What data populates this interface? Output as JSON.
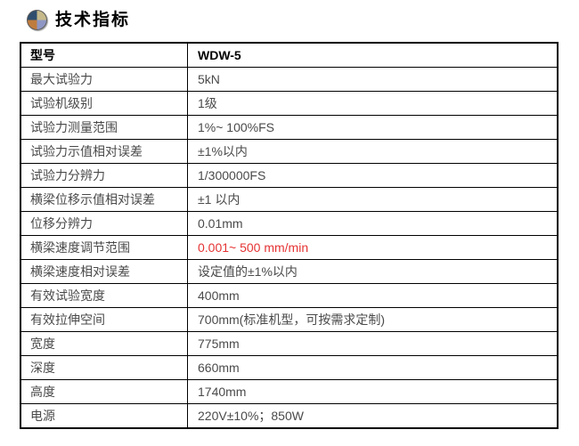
{
  "header": {
    "icon": "pie-quadrant-icon",
    "title": "技术指标"
  },
  "colors": {
    "border": "#000000",
    "text_regular": "#4a4a4a",
    "text_bold": "#000000",
    "accent_red": "#e53333",
    "icon_quadrants": {
      "top_left": "#2f4e6e",
      "top_right": "#c6ba8b",
      "bottom_left": "#bf7c3d",
      "bottom_right": "#8e96c4"
    }
  },
  "table": {
    "rows": [
      {
        "label": "型号",
        "value": "WDW-5"
      },
      {
        "label": "最大试验力",
        "value": "5kN"
      },
      {
        "label": "试验机级别",
        "value": "1级"
      },
      {
        "label": "试验力测量范围",
        "value": "1%~ 100%FS"
      },
      {
        "label": "试验力示值相对误差",
        "value": "±1%以内"
      },
      {
        "label": "试验力分辨力",
        "value": "1/300000FS"
      },
      {
        "label": "横梁位移示值相对误差",
        "value": "±1 以内"
      },
      {
        "label": "位移分辨力",
        "value": "0.01mm"
      },
      {
        "label": "横梁速度调节范围",
        "value": "0.001~ 500 mm/min"
      },
      {
        "label": "横梁速度相对误差",
        "value": "设定值的±1%以内"
      },
      {
        "label": "有效试验宽度",
        "value": "400mm"
      },
      {
        "label": "有效拉伸空间",
        "value": "700mm(标准机型，可按需求定制)"
      },
      {
        "label": "宽度",
        "value": "775mm"
      },
      {
        "label": "深度",
        "value": "660mm"
      },
      {
        "label": "高度",
        "value": "1740mm"
      },
      {
        "label": "电源",
        "value": "220V±10%；850W"
      }
    ]
  }
}
